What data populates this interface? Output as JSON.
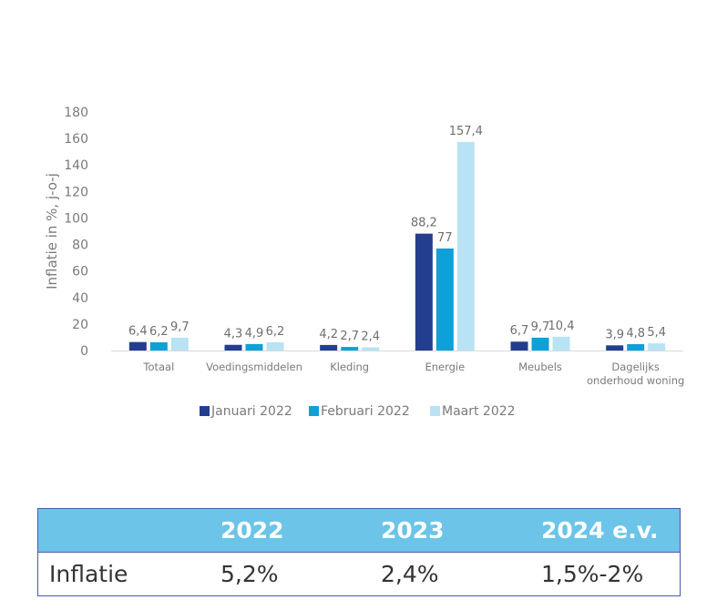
{
  "chart_data": {
    "type": "bar",
    "title": "",
    "xlabel": "",
    "ylabel": "Inflatie in %, j-o-j",
    "ylim": [
      0,
      180
    ],
    "yticks": [
      0,
      20,
      40,
      60,
      80,
      100,
      120,
      140,
      160,
      180
    ],
    "grid": false,
    "legend_position": "bottom",
    "categories": [
      "Totaal",
      "Voedingsmiddelen",
      "Kleding",
      "Energie",
      "Meubels",
      "Dagelijks onderhoud woning"
    ],
    "category_lines": [
      [
        "Totaal"
      ],
      [
        "Voedingsmiddelen"
      ],
      [
        "Kleding"
      ],
      [
        "Energie"
      ],
      [
        "Meubels"
      ],
      [
        "Dagelijks",
        "onderhoud woning"
      ]
    ],
    "series": [
      {
        "name": "Januari 2022",
        "color": "#243e8f",
        "values": [
          6.4,
          4.3,
          4.2,
          88.2,
          6.7,
          3.9
        ],
        "labels": [
          "6,4",
          "4,3",
          "4,2",
          "88,2",
          "6,7",
          "3,9"
        ]
      },
      {
        "name": "Februari 2022",
        "color": "#0ea0d8",
        "values": [
          6.2,
          4.9,
          2.7,
          77,
          9.7,
          4.8
        ],
        "labels": [
          "6,2",
          "4,9",
          "2,7",
          "77",
          "9,7",
          "4,8"
        ]
      },
      {
        "name": "Maart 2022",
        "color": "#b8e3f4",
        "values": [
          9.7,
          6.2,
          2.4,
          157.4,
          10.4,
          5.4
        ],
        "labels": [
          "9,7",
          "6,2",
          "2,4",
          "157,4",
          "10,4",
          "5,4"
        ]
      }
    ]
  },
  "summary_table": {
    "header": [
      "",
      "2022",
      "2023",
      "2024 e.v."
    ],
    "rows": [
      [
        "Inflatie",
        "5,2%",
        "2,4%",
        "1,5%-2%"
      ]
    ]
  }
}
